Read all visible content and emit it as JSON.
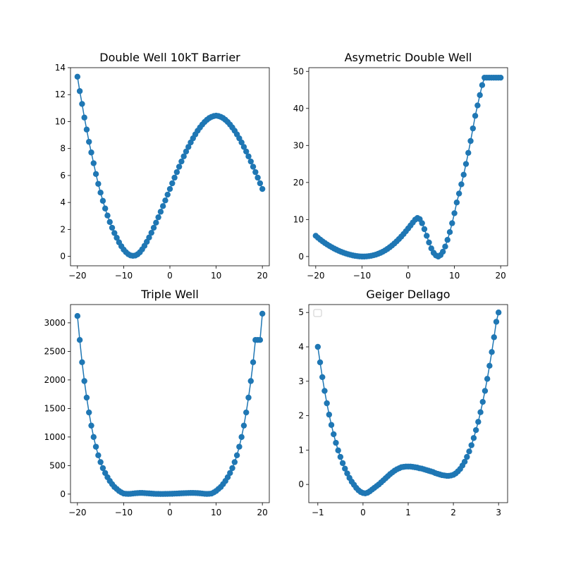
{
  "colors": {
    "series": "#1f77b4",
    "axes": "#000000",
    "background": "#ffffff"
  },
  "chart_data": [
    {
      "type": "line",
      "title": "Double Well 10kT Barrier",
      "xlabel": "",
      "ylabel": "",
      "xlim": [
        -21.5,
        21.5
      ],
      "ylim": [
        -0.7,
        14.0
      ],
      "xticks": [
        -20,
        -10,
        0,
        10,
        20
      ],
      "xtick_labels": [
        "−20",
        "−10",
        "0",
        "10",
        "20"
      ],
      "yticks": [
        0,
        2,
        4,
        6,
        8,
        10,
        12,
        14
      ],
      "ytick_labels": [
        "0",
        "2",
        "4",
        "6",
        "8",
        "10",
        "12",
        "14"
      ],
      "marker": "circle",
      "legend": "none",
      "x": [
        -20.0,
        -19.5,
        -19.0,
        -18.5,
        -18.0,
        -17.5,
        -17.0,
        -16.5,
        -16.0,
        -15.5,
        -15.0,
        -14.5,
        -14.0,
        -13.5,
        -13.0,
        -12.5,
        -12.0,
        -11.5,
        -11.0,
        -10.5,
        -10.0,
        -9.5,
        -9.0,
        -8.5,
        -8.0,
        -7.5,
        -7.0,
        -6.5,
        -6.0,
        -5.5,
        -5.0,
        -4.5,
        -4.0,
        -3.5,
        -3.0,
        -2.5,
        -2.0,
        -1.5,
        -1.0,
        -0.5,
        0.0,
        0.5,
        1.0,
        1.5,
        2.0,
        2.5,
        3.0,
        3.5,
        4.0,
        4.5,
        5.0,
        5.5,
        6.0,
        6.5,
        7.0,
        7.5,
        8.0,
        8.5,
        9.0,
        9.5,
        10.0,
        10.5,
        11.0,
        11.5,
        12.0,
        12.5,
        13.0,
        13.5,
        14.0,
        14.5,
        15.0,
        15.5,
        16.0,
        16.5,
        17.0,
        17.5,
        18.0,
        18.5,
        19.0,
        19.5,
        20.0
      ],
      "y": [
        13.33,
        12.26,
        11.31,
        10.3,
        9.41,
        8.5,
        7.71,
        6.91,
        6.11,
        5.38,
        4.73,
        4.12,
        3.55,
        3.03,
        2.55,
        2.12,
        1.73,
        1.38,
        1.04,
        0.75,
        0.5,
        0.31,
        0.16,
        0.07,
        0.04,
        0.06,
        0.15,
        0.3,
        0.52,
        0.78,
        1.08,
        1.4,
        1.75,
        2.12,
        2.5,
        2.9,
        3.31,
        3.73,
        4.15,
        4.58,
        5.0,
        5.42,
        5.84,
        6.25,
        6.65,
        7.04,
        7.42,
        7.78,
        8.12,
        8.45,
        8.76,
        9.05,
        9.32,
        9.56,
        9.78,
        9.97,
        10.13,
        10.26,
        10.35,
        10.41,
        10.44,
        10.41,
        10.35,
        10.26,
        10.13,
        9.97,
        9.78,
        9.56,
        9.32,
        9.05,
        8.76,
        8.45,
        8.12,
        7.78,
        7.42,
        7.04,
        6.65,
        6.25,
        5.84,
        5.42,
        5.0
      ]
    },
    {
      "type": "line",
      "title": "Asymetric Double Well",
      "xlabel": "",
      "ylabel": "",
      "xlim": [
        -21.5,
        21.5
      ],
      "ylim": [
        -2.5,
        51.0
      ],
      "xticks": [
        -20,
        -10,
        0,
        10,
        20
      ],
      "xtick_labels": [
        "−20",
        "−10",
        "0",
        "10",
        "20"
      ],
      "yticks": [
        0,
        10,
        20,
        30,
        40,
        50
      ],
      "ytick_labels": [
        "0",
        "10",
        "20",
        "30",
        "40",
        "50"
      ],
      "marker": "circle",
      "legend": "none",
      "x": [
        -20.0,
        -19.5,
        -19.0,
        -18.5,
        -18.0,
        -17.5,
        -17.0,
        -16.5,
        -16.0,
        -15.5,
        -15.0,
        -14.5,
        -14.0,
        -13.5,
        -13.0,
        -12.5,
        -12.0,
        -11.5,
        -11.0,
        -10.5,
        -10.0,
        -9.5,
        -9.0,
        -8.5,
        -8.0,
        -7.5,
        -7.0,
        -6.5,
        -6.0,
        -5.5,
        -5.0,
        -4.5,
        -4.0,
        -3.5,
        -3.0,
        -2.5,
        -2.0,
        -1.5,
        -1.0,
        -0.5,
        0.0,
        0.5,
        1.0,
        1.5,
        2.0,
        2.5,
        3.0,
        3.5,
        4.0,
        4.5,
        5.0,
        5.5,
        6.0,
        6.5,
        7.0,
        7.5,
        8.0,
        8.5,
        9.0,
        9.5,
        10.0,
        10.5,
        11.0,
        11.5,
        12.0,
        12.5,
        13.0,
        13.5,
        14.0,
        14.5,
        15.0,
        15.5,
        16.0,
        16.5,
        17.0,
        17.5,
        18.0,
        18.5,
        19.0,
        19.5,
        20.0
      ],
      "y": [
        5.6,
        5.06,
        4.55,
        4.08,
        3.64,
        3.22,
        2.84,
        2.48,
        2.14,
        1.83,
        1.54,
        1.28,
        1.04,
        0.82,
        0.63,
        0.46,
        0.31,
        0.19,
        0.1,
        0.03,
        0.0,
        0.0,
        0.03,
        0.1,
        0.2,
        0.34,
        0.52,
        0.74,
        1.0,
        1.3,
        1.65,
        2.05,
        2.5,
        2.99,
        3.52,
        4.1,
        4.72,
        5.38,
        6.08,
        6.82,
        7.59,
        8.38,
        9.18,
        9.95,
        10.4,
        10.1,
        9.0,
        7.4,
        5.6,
        3.8,
        2.2,
        1.0,
        0.3,
        0.0,
        0.4,
        1.3,
        2.7,
        4.5,
        6.6,
        9.0,
        11.7,
        14.6,
        17.0,
        19.5,
        22.1,
        25.0,
        28.0,
        31.2,
        34.6,
        38.0,
        40.8,
        43.6,
        46.3,
        48.3,
        48.3,
        48.3,
        48.3,
        48.3,
        48.3,
        48.3,
        48.3
      ]
    },
    {
      "type": "line",
      "title": "Triple Well",
      "xlabel": "",
      "ylabel": "",
      "xlim": [
        -21.5,
        21.5
      ],
      "ylim": [
        -150,
        3320
      ],
      "xticks": [
        -20,
        -10,
        0,
        10,
        20
      ],
      "xtick_labels": [
        "−20",
        "−10",
        "0",
        "10",
        "20"
      ],
      "yticks": [
        0,
        500,
        1000,
        1500,
        2000,
        2500,
        3000
      ],
      "ytick_labels": [
        "0",
        "500",
        "1000",
        "1500",
        "2000",
        "2500",
        "3000"
      ],
      "marker": "circle",
      "legend": "none",
      "x": [
        -20.0,
        -19.5,
        -19.0,
        -18.5,
        -18.0,
        -17.5,
        -17.0,
        -16.5,
        -16.0,
        -15.5,
        -15.0,
        -14.5,
        -14.0,
        -13.5,
        -13.0,
        -12.5,
        -12.0,
        -11.5,
        -11.0,
        -10.5,
        -10.0,
        -9.5,
        -9.0,
        -8.5,
        -8.0,
        -7.5,
        -7.0,
        -6.5,
        -6.0,
        -5.5,
        -5.0,
        -4.5,
        -4.0,
        -3.5,
        -3.0,
        -2.5,
        -2.0,
        -1.5,
        -1.0,
        -0.5,
        0.0,
        0.5,
        1.0,
        1.5,
        2.0,
        2.5,
        3.0,
        3.5,
        4.0,
        4.5,
        5.0,
        5.5,
        6.0,
        6.5,
        7.0,
        7.5,
        8.0,
        8.5,
        9.0,
        9.5,
        10.0,
        10.5,
        11.0,
        11.5,
        12.0,
        12.5,
        13.0,
        13.5,
        14.0,
        14.5,
        15.0,
        15.5,
        16.0,
        16.5,
        17.0,
        17.5,
        18.0,
        18.5,
        19.0,
        19.5,
        20.0
      ],
      "y": [
        3120,
        2700,
        2310,
        1980,
        1690,
        1430,
        1200,
        1000,
        830,
        680,
        560,
        455,
        370,
        295,
        230,
        175,
        125,
        90,
        55,
        30,
        10,
        5,
        3,
        5,
        10,
        15,
        18,
        20,
        20,
        18,
        15,
        12,
        9,
        6,
        4,
        3,
        2,
        2,
        3,
        4,
        5,
        6,
        8,
        10,
        12,
        14,
        16,
        18,
        19,
        20,
        20,
        19,
        17,
        14,
        10,
        5,
        3,
        5,
        10,
        30,
        55,
        90,
        125,
        175,
        230,
        295,
        370,
        455,
        560,
        680,
        830,
        1000,
        1200,
        1430,
        1690,
        1980,
        2310,
        2700,
        2700,
        2700,
        3160
      ]
    },
    {
      "type": "line",
      "title": "Geiger Dellago",
      "xlabel": "",
      "ylabel": "",
      "xlim": [
        -1.2,
        3.2
      ],
      "ylim": [
        -0.53,
        5.23
      ],
      "xticks": [
        -1,
        0,
        1,
        2,
        3
      ],
      "xtick_labels": [
        "−1",
        "0",
        "1",
        "2",
        "3"
      ],
      "yticks": [
        0,
        1,
        2,
        3,
        4,
        5
      ],
      "ytick_labels": [
        "0",
        "1",
        "2",
        "3",
        "4",
        "5"
      ],
      "marker": "circle",
      "legend": "top-left",
      "x": [
        -1.0,
        -0.95,
        -0.9,
        -0.85,
        -0.8,
        -0.75,
        -0.7,
        -0.65,
        -0.6,
        -0.55,
        -0.5,
        -0.45,
        -0.4,
        -0.35,
        -0.3,
        -0.25,
        -0.2,
        -0.15,
        -0.1,
        -0.05,
        0.0,
        0.05,
        0.1,
        0.15,
        0.2,
        0.25,
        0.3,
        0.35,
        0.4,
        0.45,
        0.5,
        0.55,
        0.6,
        0.65,
        0.7,
        0.75,
        0.8,
        0.85,
        0.9,
        0.95,
        1.0,
        1.05,
        1.1,
        1.15,
        1.2,
        1.25,
        1.3,
        1.35,
        1.4,
        1.45,
        1.5,
        1.55,
        1.6,
        1.65,
        1.7,
        1.75,
        1.8,
        1.85,
        1.9,
        1.95,
        2.0,
        2.05,
        2.1,
        2.15,
        2.2,
        2.25,
        2.3,
        2.35,
        2.4,
        2.45,
        2.5,
        2.55,
        2.6,
        2.65,
        2.7,
        2.75,
        2.8,
        2.85,
        2.9,
        2.95,
        3.0
      ],
      "y": [
        4.0,
        3.55,
        3.12,
        2.72,
        2.36,
        2.03,
        1.73,
        1.46,
        1.21,
        0.99,
        0.8,
        0.62,
        0.46,
        0.32,
        0.19,
        0.08,
        -0.01,
        -0.1,
        -0.17,
        -0.22,
        -0.25,
        -0.26,
        -0.24,
        -0.2,
        -0.15,
        -0.1,
        -0.05,
        0.0,
        0.06,
        0.12,
        0.18,
        0.24,
        0.3,
        0.35,
        0.4,
        0.44,
        0.47,
        0.5,
        0.51,
        0.52,
        0.52,
        0.52,
        0.51,
        0.5,
        0.49,
        0.47,
        0.46,
        0.44,
        0.42,
        0.4,
        0.38,
        0.36,
        0.33,
        0.31,
        0.29,
        0.27,
        0.26,
        0.25,
        0.25,
        0.26,
        0.28,
        0.32,
        0.38,
        0.45,
        0.55,
        0.66,
        0.8,
        0.96,
        1.14,
        1.35,
        1.58,
        1.82,
        2.1,
        2.4,
        2.72,
        3.07,
        3.45,
        3.85,
        4.28,
        4.73,
        5.0
      ]
    }
  ]
}
